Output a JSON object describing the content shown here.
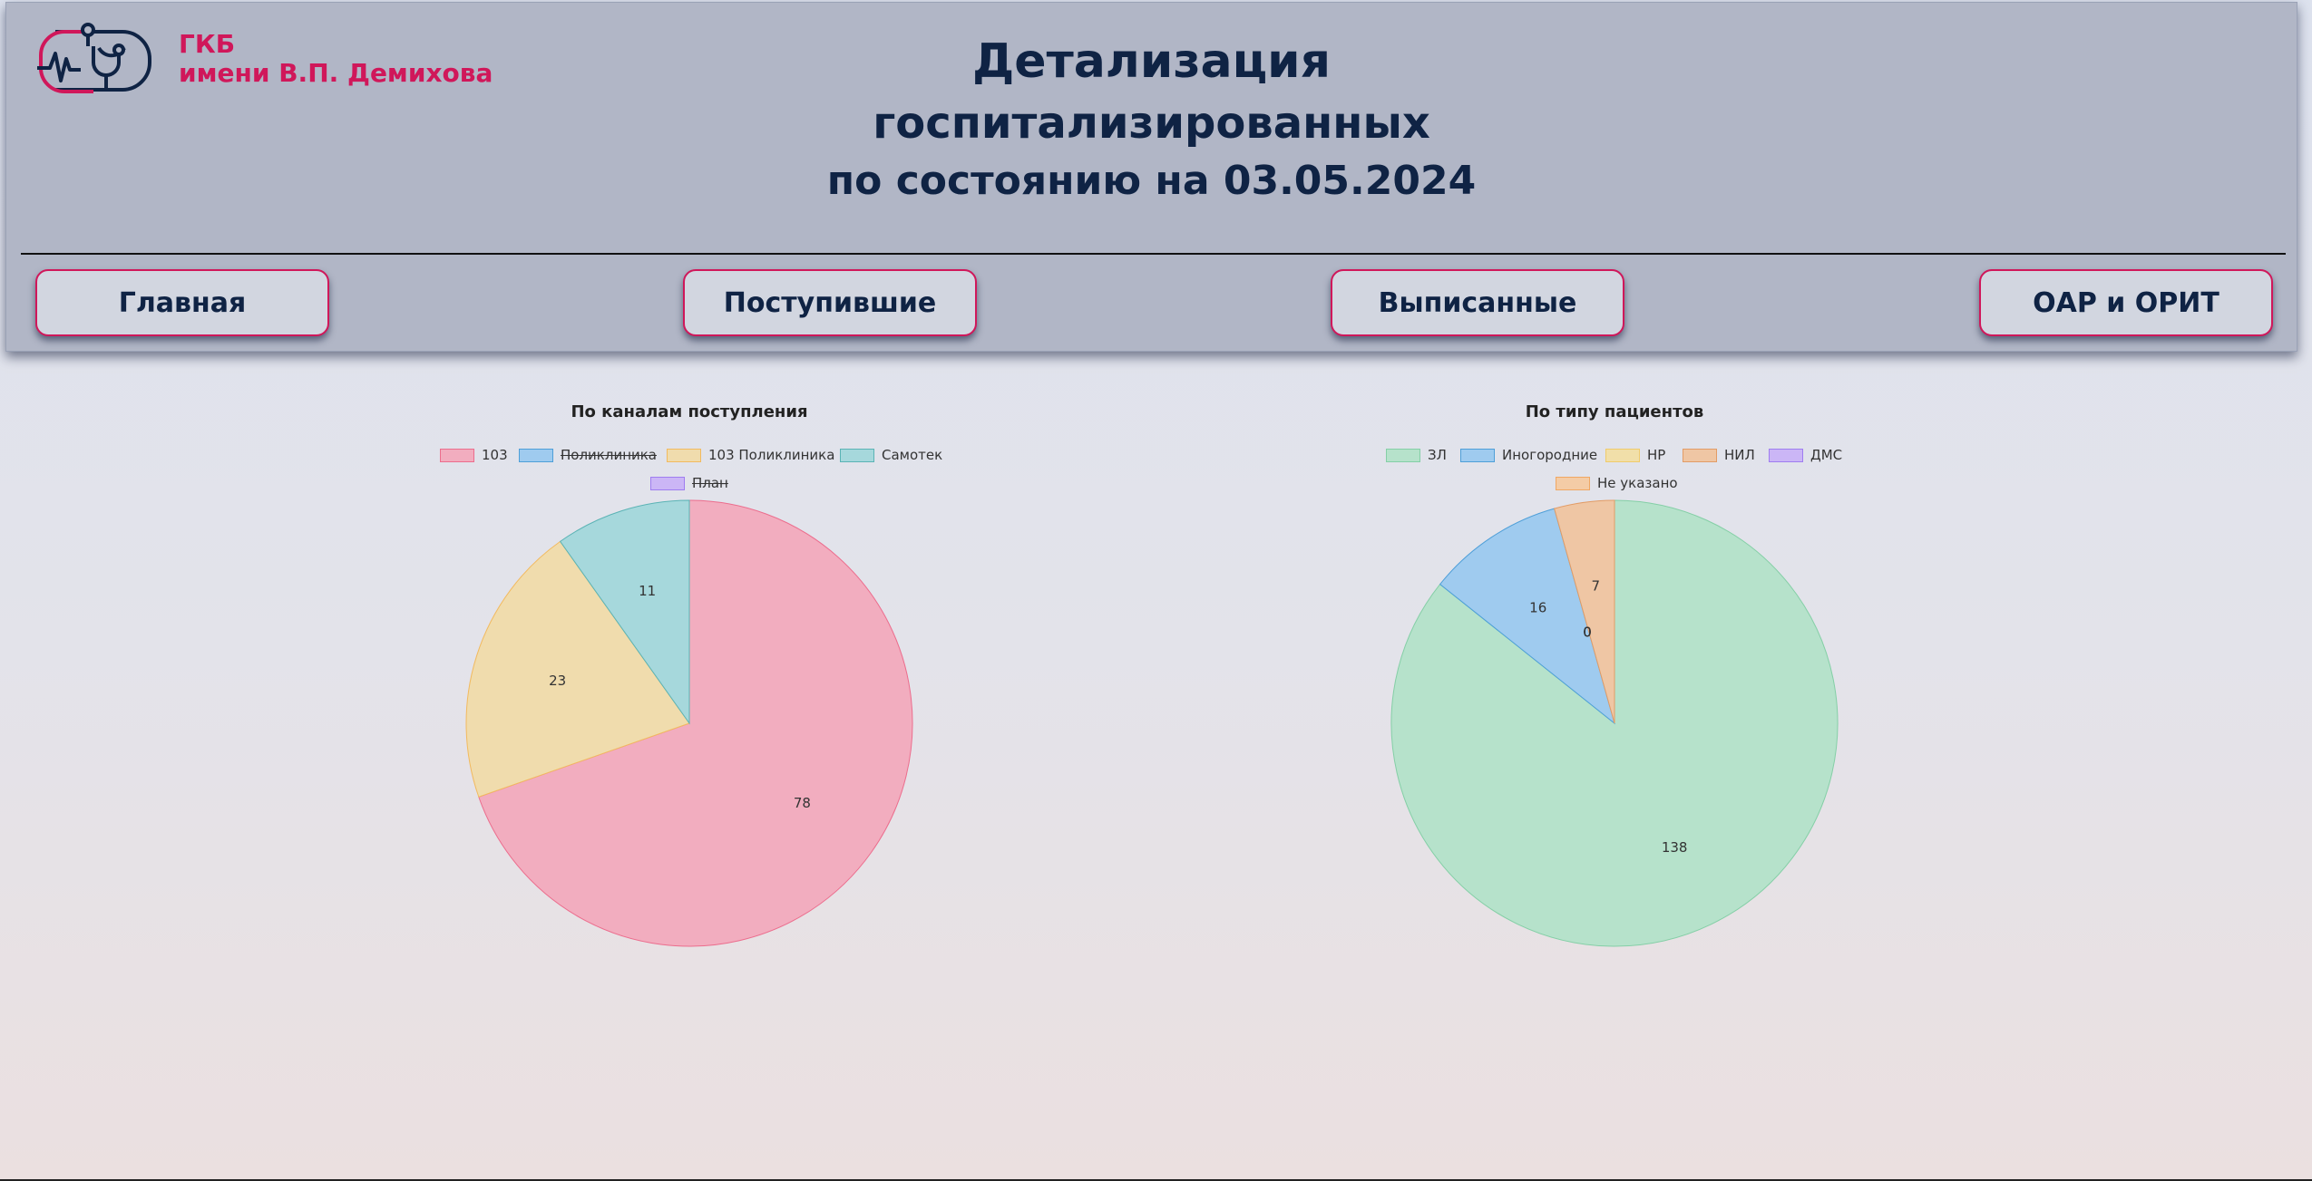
{
  "header": {
    "org_line1": "ГКБ",
    "org_line2": "имени В.П. Демихова",
    "title_line1": "Детализация",
    "title_line2": "госпитализированных",
    "title_line3": "по состоянию на 03.05.2024",
    "logo_icon": "heartbeat-stethoscope-icon"
  },
  "nav": {
    "home": "Главная",
    "admitted": "Поступившие",
    "discharged": "Выписанные",
    "icu": "ОАР и ОРИТ"
  },
  "colors": {
    "accent": "#d0175a",
    "text": "#0f2344",
    "header_bg": "#b1b6c6"
  },
  "chart_data": [
    {
      "type": "pie",
      "title": "По каналам поступления",
      "legend_position": "top",
      "series": [
        {
          "name": "103",
          "value": 78,
          "visible": true,
          "color": "#f2adbf",
          "border": "#ec6d8d"
        },
        {
          "name": "Поликлиника",
          "value": null,
          "visible": false,
          "color": "#9fcbef",
          "border": "#4e9fd8"
        },
        {
          "name": "103 Поликлиника",
          "value": 23,
          "visible": true,
          "color": "#f0dcad",
          "border": "#f2ba5f"
        },
        {
          "name": "Самотек",
          "value": 11,
          "visible": true,
          "color": "#a6d8dc",
          "border": "#5ab3b5"
        },
        {
          "name": "План",
          "value": null,
          "visible": false,
          "color": "#cbb6f6",
          "border": "#9f7df0"
        }
      ]
    },
    {
      "type": "pie",
      "title": "По типу пациентов",
      "legend_position": "top",
      "series": [
        {
          "name": "ЗЛ",
          "value": 138,
          "visible": true,
          "color": "#b6e2cb",
          "border": "#84cfa6"
        },
        {
          "name": "Иногородние",
          "value": 16,
          "visible": true,
          "color": "#9fcbef",
          "border": "#4e9fd8"
        },
        {
          "name": "НР",
          "value": 0,
          "visible": true,
          "color": "#f1dfa9",
          "border": "#f0cb6b"
        },
        {
          "name": "НИЛ",
          "value": 7,
          "visible": true,
          "color": "#efc6a4",
          "border": "#e29c66"
        },
        {
          "name": "ДМС",
          "value": 0,
          "visible": true,
          "color": "#cbb6f6",
          "border": "#9f7df0"
        },
        {
          "name": "Не указано",
          "value": 0,
          "visible": true,
          "color": "#f4cca6",
          "border": "#f0a763"
        }
      ]
    }
  ]
}
